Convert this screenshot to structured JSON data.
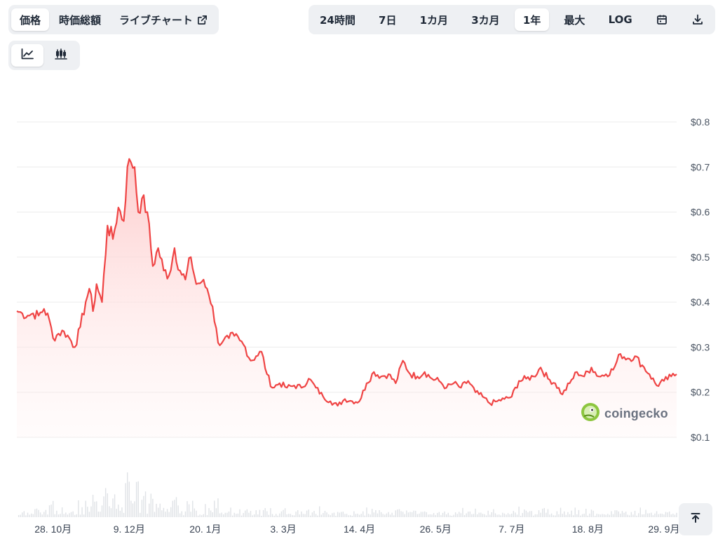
{
  "metric_tabs": [
    {
      "label": "価格",
      "active": true
    },
    {
      "label": "時価総額",
      "active": false
    },
    {
      "label": "ライブチャート",
      "active": false,
      "icon": "external-link-icon"
    }
  ],
  "range_tabs": [
    {
      "label": "24時間",
      "active": false
    },
    {
      "label": "7日",
      "active": false
    },
    {
      "label": "1カ月",
      "active": false
    },
    {
      "label": "3カ月",
      "active": false
    },
    {
      "label": "1年",
      "active": true
    },
    {
      "label": "最大",
      "active": false
    },
    {
      "label": "LOG",
      "active": false
    }
  ],
  "range_icons": [
    "calendar-icon",
    "download-icon"
  ],
  "chart_type_icons": [
    {
      "icon": "line-chart-icon",
      "active": true
    },
    {
      "icon": "candlestick-chart-icon",
      "active": false
    }
  ],
  "watermark": {
    "text": "coingecko",
    "icon": "gecko-logo-icon"
  },
  "scroll_top_icon": "arrow-up-to-top-icon",
  "colors": {
    "line": "#ef4444",
    "area_top": "#fecaca",
    "grid": "#ececec",
    "volume": "#d1d5db"
  },
  "chart_data": {
    "type": "area",
    "title": "",
    "xlabel": "",
    "ylabel": "",
    "x_start": "2023-10-08",
    "x_end": "2024-10-06",
    "ylim": [
      0.1,
      0.8
    ],
    "y_ticks": [
      0.8,
      0.7,
      0.6,
      0.5,
      0.4,
      0.3,
      0.2,
      0.1
    ],
    "y_tick_labels": [
      "$0.8",
      "$0.7",
      "$0.6",
      "$0.5",
      "$0.4",
      "$0.3",
      "$0.2",
      "$0.1"
    ],
    "x_ticks": [
      "2023-10-28",
      "2023-12-09",
      "2024-01-20",
      "2024-03-03",
      "2024-04-14",
      "2024-05-26",
      "2024-07-07",
      "2024-08-18",
      "2024-09-29"
    ],
    "x_tick_labels": [
      "28. 10月",
      "9. 12月",
      "20. 1月",
      "3. 3月",
      "14. 4月",
      "26. 5月",
      "7. 7月",
      "18. 8月",
      "29. 9月"
    ],
    "grid": true,
    "legend": "none",
    "series": [
      {
        "values": [
          [
            "2023-10-08",
            0.38
          ],
          [
            "2023-10-11",
            0.375
          ],
          [
            "2023-10-14",
            0.37
          ],
          [
            "2023-10-17",
            0.375
          ],
          [
            "2023-10-20",
            0.37
          ],
          [
            "2023-10-23",
            0.385
          ],
          [
            "2023-10-26",
            0.36
          ],
          [
            "2023-10-28",
            0.32
          ],
          [
            "2023-10-31",
            0.33
          ],
          [
            "2023-11-03",
            0.335
          ],
          [
            "2023-11-06",
            0.32
          ],
          [
            "2023-11-09",
            0.3
          ],
          [
            "2023-11-12",
            0.345
          ],
          [
            "2023-11-15",
            0.4
          ],
          [
            "2023-11-17",
            0.43
          ],
          [
            "2023-11-19",
            0.38
          ],
          [
            "2023-11-21",
            0.44
          ],
          [
            "2023-11-24",
            0.4
          ],
          [
            "2023-11-27",
            0.57
          ],
          [
            "2023-11-30",
            0.54
          ],
          [
            "2023-12-03",
            0.61
          ],
          [
            "2023-12-06",
            0.58
          ],
          [
            "2023-12-08",
            0.7
          ],
          [
            "2023-12-10",
            0.71
          ],
          [
            "2023-12-12",
            0.7
          ],
          [
            "2023-12-14",
            0.6
          ],
          [
            "2023-12-16",
            0.63
          ],
          [
            "2023-12-19",
            0.6
          ],
          [
            "2023-12-22",
            0.48
          ],
          [
            "2023-12-25",
            0.52
          ],
          [
            "2023-12-28",
            0.47
          ],
          [
            "2023-12-31",
            0.46
          ],
          [
            "2024-01-03",
            0.52
          ],
          [
            "2024-01-06",
            0.47
          ],
          [
            "2024-01-09",
            0.45
          ],
          [
            "2024-01-12",
            0.5
          ],
          [
            "2024-01-15",
            0.44
          ],
          [
            "2024-01-18",
            0.445
          ],
          [
            "2024-01-21",
            0.43
          ],
          [
            "2024-01-24",
            0.39
          ],
          [
            "2024-01-27",
            0.31
          ],
          [
            "2024-01-30",
            0.315
          ],
          [
            "2024-02-02",
            0.32
          ],
          [
            "2024-02-05",
            0.325
          ],
          [
            "2024-02-08",
            0.315
          ],
          [
            "2024-02-11",
            0.3
          ],
          [
            "2024-02-14",
            0.27
          ],
          [
            "2024-02-17",
            0.28
          ],
          [
            "2024-02-20",
            0.29
          ],
          [
            "2024-02-23",
            0.24
          ],
          [
            "2024-02-26",
            0.21
          ],
          [
            "2024-03-01",
            0.22
          ],
          [
            "2024-03-05",
            0.21
          ],
          [
            "2024-03-09",
            0.215
          ],
          [
            "2024-03-13",
            0.21
          ],
          [
            "2024-03-17",
            0.23
          ],
          [
            "2024-03-21",
            0.21
          ],
          [
            "2024-03-25",
            0.19
          ],
          [
            "2024-03-29",
            0.18
          ],
          [
            "2024-04-02",
            0.17
          ],
          [
            "2024-04-06",
            0.185
          ],
          [
            "2024-04-10",
            0.18
          ],
          [
            "2024-04-14",
            0.18
          ],
          [
            "2024-04-18",
            0.22
          ],
          [
            "2024-04-22",
            0.245
          ],
          [
            "2024-04-26",
            0.235
          ],
          [
            "2024-04-30",
            0.24
          ],
          [
            "2024-05-04",
            0.22
          ],
          [
            "2024-05-08",
            0.27
          ],
          [
            "2024-05-12",
            0.24
          ],
          [
            "2024-05-16",
            0.235
          ],
          [
            "2024-05-20",
            0.245
          ],
          [
            "2024-05-24",
            0.23
          ],
          [
            "2024-05-28",
            0.225
          ],
          [
            "2024-06-01",
            0.21
          ],
          [
            "2024-06-05",
            0.22
          ],
          [
            "2024-06-09",
            0.21
          ],
          [
            "2024-06-13",
            0.225
          ],
          [
            "2024-06-17",
            0.2
          ],
          [
            "2024-06-21",
            0.19
          ],
          [
            "2024-06-25",
            0.175
          ],
          [
            "2024-06-29",
            0.18
          ],
          [
            "2024-07-03",
            0.185
          ],
          [
            "2024-07-07",
            0.19
          ],
          [
            "2024-07-11",
            0.225
          ],
          [
            "2024-07-15",
            0.23
          ],
          [
            "2024-07-19",
            0.235
          ],
          [
            "2024-07-23",
            0.255
          ],
          [
            "2024-07-27",
            0.23
          ],
          [
            "2024-07-31",
            0.22
          ],
          [
            "2024-08-04",
            0.195
          ],
          [
            "2024-08-08",
            0.22
          ],
          [
            "2024-08-12",
            0.245
          ],
          [
            "2024-08-16",
            0.235
          ],
          [
            "2024-08-20",
            0.255
          ],
          [
            "2024-08-24",
            0.235
          ],
          [
            "2024-08-28",
            0.24
          ],
          [
            "2024-09-01",
            0.25
          ],
          [
            "2024-09-05",
            0.285
          ],
          [
            "2024-09-09",
            0.275
          ],
          [
            "2024-09-13",
            0.28
          ],
          [
            "2024-09-17",
            0.26
          ],
          [
            "2024-09-21",
            0.24
          ],
          [
            "2024-09-25",
            0.215
          ],
          [
            "2024-09-29",
            0.225
          ],
          [
            "2024-10-03",
            0.235
          ],
          [
            "2024-10-06",
            0.24
          ]
        ]
      }
    ]
  }
}
